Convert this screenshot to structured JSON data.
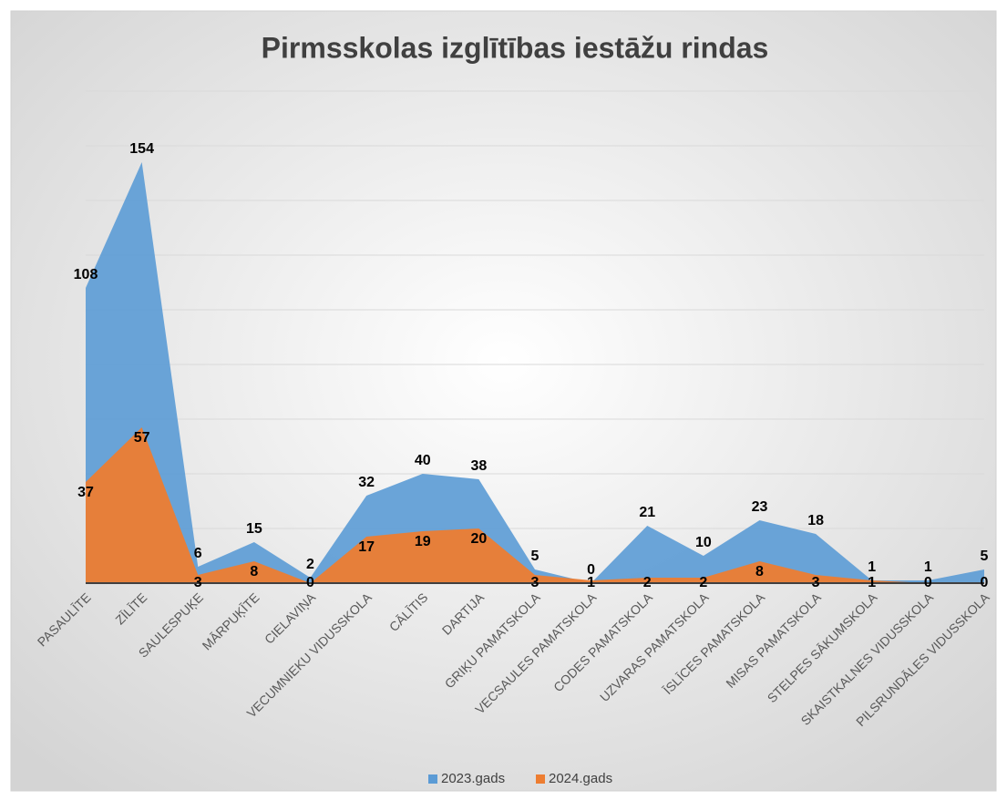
{
  "chart_data": {
    "type": "area",
    "title": "Pirmsskolas izglītības iestāžu rindas",
    "categories": [
      "PASAULĪTE",
      "ZĪLĪTE",
      "SAULESPUĶE",
      "MĀRPUĶĪTE",
      "CIELAVIŅA",
      "VECUMNIEKU VIDUSSKOLA",
      "CĀLĪTIS",
      "DARTIJA",
      "GRIĶU PAMATSKOLA",
      "VECSAULES PAMATSKOLA",
      "CODES PAMATSKOLA",
      "UZVARAS PAMATSKOLA",
      "ĪSLĪCES PAMATSKOLA",
      "MISAS PAMATSKOLA",
      "STELPES SĀKUMSKOLA",
      "SKAISTKALNES VIDUSSKOLA",
      "PILSRUNDĀLES VIDUSSKOLA"
    ],
    "series": [
      {
        "name": "2023.gads",
        "color": "#5b9bd5",
        "values": [
          108,
          154,
          6,
          15,
          2,
          32,
          40,
          38,
          5,
          0,
          21,
          10,
          23,
          18,
          1,
          1,
          5
        ]
      },
      {
        "name": "2024.gads",
        "color": "#ed7d31",
        "values": [
          37,
          57,
          3,
          8,
          0,
          17,
          19,
          20,
          3,
          1,
          2,
          2,
          8,
          3,
          1,
          0,
          0
        ]
      }
    ],
    "ylim": [
      0,
      180
    ],
    "yticks": [
      0,
      20,
      40,
      60,
      80,
      100,
      120,
      140,
      160,
      180
    ],
    "grid": true,
    "ytick_labels": false,
    "legend": "bottom"
  }
}
